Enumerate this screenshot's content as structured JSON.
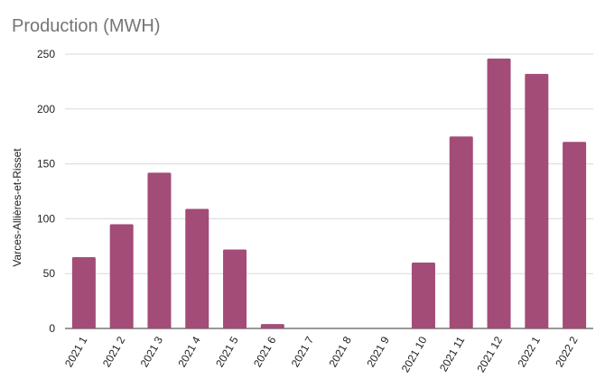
{
  "title": "Production (MWH)",
  "chart_data": {
    "type": "bar",
    "title": "Production (MWH)",
    "xlabel": "",
    "ylabel": "Varces-Allières-et-Risset",
    "categories": [
      "2021 1",
      "2021 2",
      "2021 3",
      "2021 4",
      "2021 5",
      "2021 6",
      "2021 7",
      "2021 8",
      "2021 9",
      "2021 10",
      "2021 11",
      "2021 12",
      "2022 1",
      "2022 2"
    ],
    "series": [
      {
        "values": [
          65,
          95,
          142,
          109,
          72,
          4,
          0,
          0,
          0,
          60,
          175,
          246,
          232,
          170
        ]
      }
    ],
    "ylim": [
      0,
      250
    ],
    "yticks": [
      0,
      50,
      100,
      150,
      200,
      250
    ],
    "grid": true,
    "bar_color": "#a34c77",
    "grid_color": "#d9d9d9"
  }
}
